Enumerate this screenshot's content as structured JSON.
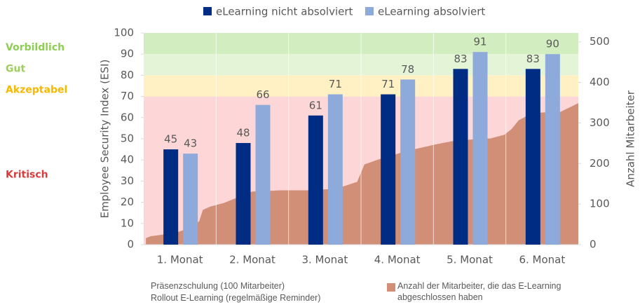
{
  "chart_data": {
    "type": "bar",
    "categories": [
      "1. Monat",
      "2. Monat",
      "3. Monat",
      "4. Monat",
      "5. Monat",
      "6. Monat"
    ],
    "series": [
      {
        "name": "eLearning nicht absolviert",
        "color": "#002c84",
        "values": [
          45,
          48,
          61,
          71,
          83,
          83
        ]
      },
      {
        "name": "eLearning absolviert",
        "color": "#8eaadb",
        "values": [
          43,
          66,
          71,
          78,
          91,
          90
        ]
      }
    ],
    "ylim": [
      0,
      100
    ],
    "yticks": [
      0,
      10,
      20,
      30,
      40,
      50,
      60,
      70,
      80,
      90,
      100
    ],
    "ylabel": "Employee Security Index (ESI)",
    "y2lim": [
      0,
      522
    ],
    "y2ticks": [
      0,
      100,
      200,
      300,
      400,
      500
    ],
    "y2label": "Anzahl Mitarbeiter",
    "bands": [
      {
        "label": "Kritisch",
        "from": 0,
        "to": 70,
        "color": "#fdd7d7",
        "text_color": "#d93a3a"
      },
      {
        "label": "Akzeptabel",
        "from": 70,
        "to": 80,
        "color": "#fff1c4",
        "text_color": "#f6b900"
      },
      {
        "label": "Gut",
        "from": 80,
        "to": 90,
        "color": "#e4f4d6",
        "text_color": "#9ccf5c"
      },
      {
        "label": "Vorbildlich",
        "from": 90,
        "to": 100,
        "color": "#d2eec0",
        "text_color": "#8fce54"
      }
    ],
    "area": {
      "name": "Anzahl der Mitarbeiter, die das E-Learning abgeschlossen haben",
      "color": "#d18f78",
      "axis": "y2",
      "xlim": [
        0,
        6
      ],
      "x": [
        0.03,
        0.1,
        0.44,
        0.63,
        0.77,
        0.82,
        0.92,
        1.11,
        1.5,
        1.89,
        2.27,
        2.66,
        2.95,
        3.05,
        3.24,
        3.63,
        4.02,
        4.31,
        4.79,
        4.98,
        5.08,
        5.18,
        5.37,
        5.76,
        6
      ],
      "values": [
        15,
        20,
        28,
        40,
        57,
        85,
        93,
        102,
        130,
        133,
        133,
        137,
        154,
        197,
        209,
        230,
        246,
        256,
        261,
        270,
        284,
        306,
        324,
        327,
        348
      ]
    },
    "notes": [
      "Präsenzschulung (100 Mitarbeiter)",
      "Rollout E-Learning (regelmäßige Reminder)"
    ]
  }
}
